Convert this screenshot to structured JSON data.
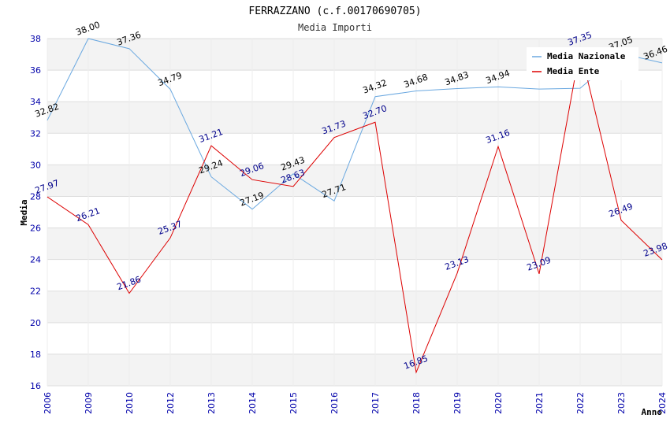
{
  "chart_data": {
    "type": "line",
    "title": "FERRAZZANO (c.f.00170690705)",
    "subtitle": "Media Importi",
    "xlabel": "Anno",
    "ylabel": "Media",
    "categories": [
      "2006",
      "2009",
      "2010",
      "2012",
      "2013",
      "2014",
      "2015",
      "2016",
      "2017",
      "2018",
      "2019",
      "2020",
      "2021",
      "2022",
      "2023",
      "2024"
    ],
    "ylim": [
      16,
      38
    ],
    "yticks": [
      16,
      18,
      20,
      22,
      24,
      26,
      28,
      30,
      32,
      34,
      36,
      38
    ],
    "grid": true,
    "legend_position": "top-right",
    "series": [
      {
        "name": "Media Nazionale",
        "color": "#6aa8e0",
        "label_color": "#000000",
        "values": [
          32.82,
          38.0,
          37.36,
          34.79,
          29.24,
          27.19,
          29.43,
          27.71,
          34.32,
          34.68,
          34.83,
          34.94,
          34.8,
          34.85,
          37.05,
          36.46
        ],
        "labels": [
          "32.82",
          "38.00",
          "37.36",
          "34.79",
          "29.24",
          "27.19",
          "29.43",
          "27.71",
          "34.32",
          "34.68",
          "34.83",
          "34.94",
          "",
          "",
          "37.05",
          "36.46"
        ]
      },
      {
        "name": "Media Ente",
        "color": "#dd0000",
        "label_color": "#00008b",
        "values": [
          27.97,
          26.21,
          21.86,
          25.37,
          31.21,
          29.06,
          28.63,
          31.73,
          32.7,
          16.85,
          23.13,
          31.16,
          23.09,
          37.35,
          26.49,
          23.98
        ],
        "labels": [
          "27.97",
          "26.21",
          "21.86",
          "25.37",
          "31.21",
          "29.06",
          "28.63",
          "31.73",
          "32.70",
          "16.85",
          "23.13",
          "31.16",
          "23.09",
          "37.35",
          "26.49",
          "23.98"
        ]
      }
    ]
  }
}
